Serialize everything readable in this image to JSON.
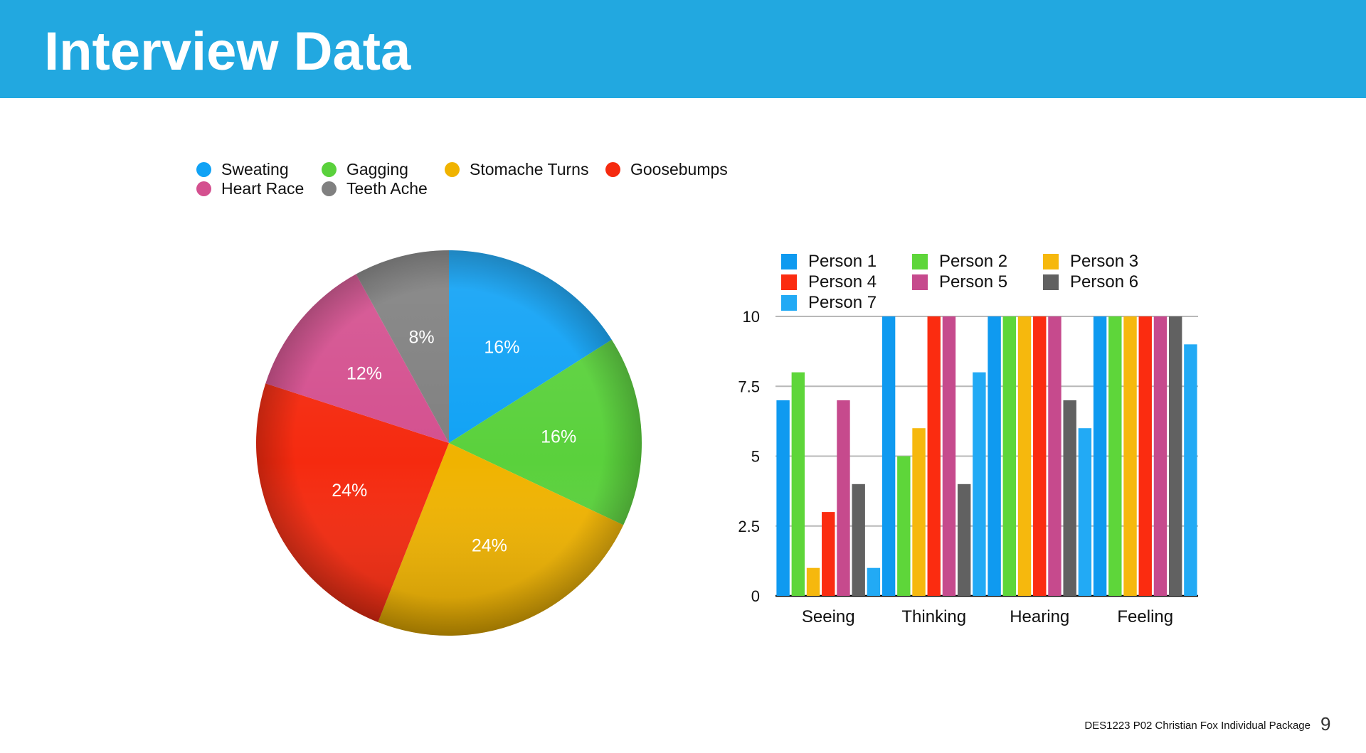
{
  "header": {
    "title": "Interview Data"
  },
  "footer": {
    "text": "DES1223  P02  Christian Fox  Individual Package",
    "page": "9"
  },
  "chart_data": [
    {
      "type": "pie",
      "legend_position": "top",
      "slices": [
        {
          "name": "Sweating",
          "value": 16,
          "label": "16%",
          "color": "#10a2f5"
        },
        {
          "name": "Gagging",
          "value": 16,
          "label": "16%",
          "color": "#5ad13c"
        },
        {
          "name": "Stomache Turns",
          "value": 24,
          "label": "24%",
          "color": "#f0b300"
        },
        {
          "name": "Goosebumps",
          "value": 24,
          "label": "24%",
          "color": "#f52a0f"
        },
        {
          "name": "Heart Race",
          "value": 12,
          "label": "12%",
          "color": "#d4508f"
        },
        {
          "name": "Teeth Ache",
          "value": 8,
          "label": "8%",
          "color": "#808080"
        }
      ]
    },
    {
      "type": "bar",
      "legend_position": "top",
      "grid": true,
      "ylim": [
        0,
        10
      ],
      "yticks": [
        "0",
        "2.5",
        "5",
        "7.5",
        "10"
      ],
      "categories": [
        "Seeing",
        "Thinking",
        "Hearing",
        "Feeling"
      ],
      "series": [
        {
          "name": "Person 1",
          "color": "#0f9af0",
          "values": [
            7,
            10,
            10,
            10
          ]
        },
        {
          "name": "Person 2",
          "color": "#5ed63a",
          "values": [
            8,
            5,
            10,
            10
          ]
        },
        {
          "name": "Person 3",
          "color": "#f6b80d",
          "values": [
            1,
            6,
            10,
            10
          ]
        },
        {
          "name": "Person 4",
          "color": "#fb2c10",
          "values": [
            3,
            10,
            10,
            10
          ]
        },
        {
          "name": "Person 5",
          "color": "#c64a8d",
          "values": [
            7,
            10,
            10,
            10
          ]
        },
        {
          "name": "Person 6",
          "color": "#616161",
          "values": [
            4,
            4,
            7,
            10
          ]
        },
        {
          "name": "Person 7",
          "color": "#22aaf5",
          "values": [
            1,
            8,
            6,
            9
          ]
        }
      ]
    }
  ]
}
